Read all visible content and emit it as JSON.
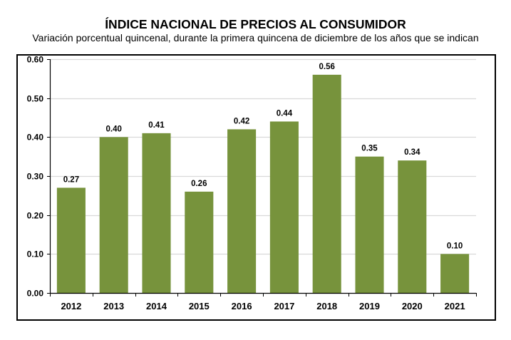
{
  "chart_data": {
    "type": "bar",
    "title": "ÍNDICE NACIONAL DE PRECIOS AL CONSUMIDOR",
    "subtitle": "Variación porcentual quincenal, durante la primera quincena de diciembre de los años que se indican",
    "xlabel": "",
    "ylabel": "",
    "categories": [
      "2012",
      "2013",
      "2014",
      "2015",
      "2016",
      "2017",
      "2018",
      "2019",
      "2020",
      "2021"
    ],
    "values": [
      0.27,
      0.4,
      0.41,
      0.26,
      0.42,
      0.44,
      0.56,
      0.35,
      0.34,
      0.1
    ],
    "data_labels": [
      "0.27",
      "0.40",
      "0.41",
      "0.26",
      "0.42",
      "0.44",
      "0.56",
      "0.35",
      "0.34",
      "0.10"
    ],
    "ylim": [
      0,
      0.6
    ],
    "yticks": [
      0.0,
      0.1,
      0.2,
      0.3,
      0.4,
      0.5,
      0.6
    ],
    "ytick_labels": [
      "0.00",
      "0.10",
      "0.20",
      "0.30",
      "0.40",
      "0.50",
      "0.60"
    ],
    "grid": true,
    "legend": "none",
    "bar_color": "#77933c",
    "grid_color": "#d9d9d9"
  }
}
